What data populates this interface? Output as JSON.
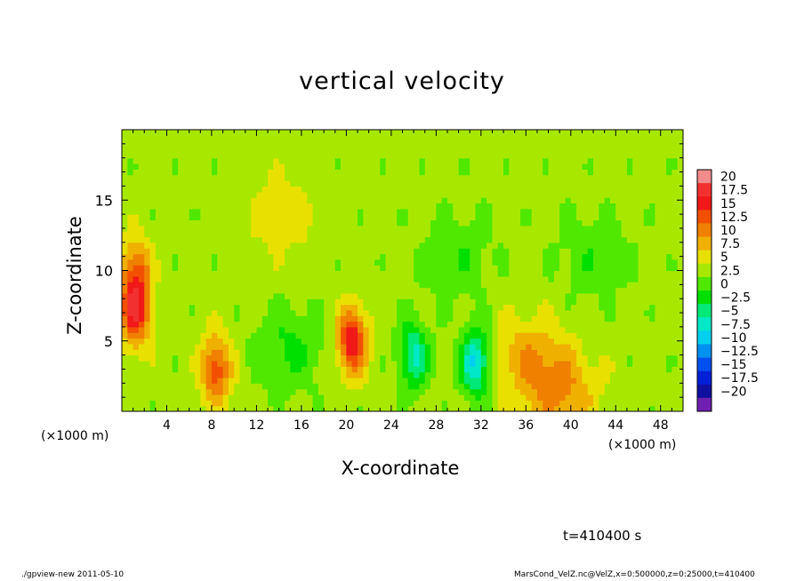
{
  "title": "vertical velocity",
  "footer": {
    "left": "./gpview-new  2011-05-10",
    "right": "MarsCond_VelZ.nc@VelZ,x=0:500000,z=0:25000,t=410400"
  },
  "time_label": "t=410400 s",
  "chart_data": {
    "type": "heatmap",
    "title": "vertical velocity",
    "xlabel": "X-coordinate",
    "ylabel": "Z-coordinate",
    "x_unit": "(×1000 m)",
    "xlim": [
      0,
      50
    ],
    "ylim": [
      0,
      20
    ],
    "x_ticks": [
      4,
      8,
      12,
      16,
      20,
      24,
      28,
      32,
      36,
      40,
      44,
      48
    ],
    "y_ticks": [
      5,
      10,
      15
    ],
    "colorbar": {
      "levels": [
        "20",
        "17.5",
        "15",
        "12.5",
        "10",
        "7.5",
        "5",
        "2.5",
        "0",
        "−2.5",
        "−5",
        "−7.5",
        "−10",
        "−12.5",
        "−15",
        "−17.5",
        "−20"
      ],
      "colors": [
        "#f28c8c",
        "#f23030",
        "#f01818",
        "#f25000",
        "#f08000",
        "#f0b000",
        "#e8e000",
        "#a8e800",
        "#50e800",
        "#00e000",
        "#00e878",
        "#00e8c8",
        "#00d0f0",
        "#0090f0",
        "#0050f0",
        "#0020d8",
        "#1010a0",
        "#7020b0"
      ]
    },
    "background_value": 1,
    "features": [
      {
        "x": 1.2,
        "z": 7.0,
        "peak": 13
      },
      {
        "x": 1.2,
        "z": 10.0,
        "peak": 9
      },
      {
        "x": 8.4,
        "z": 3.0,
        "peak": 11
      },
      {
        "x": 20.5,
        "z": 5.0,
        "peak": 14
      },
      {
        "x": 14.5,
        "z": 14.0,
        "peak": 3
      },
      {
        "x": 15.0,
        "z": 4.5,
        "peak": -4
      },
      {
        "x": 26.0,
        "z": 4.0,
        "peak": -9
      },
      {
        "x": 31.5,
        "z": 3.5,
        "peak": -12
      },
      {
        "x": 36.0,
        "z": 4.0,
        "peak": 5
      },
      {
        "x": 39.0,
        "z": 1.5,
        "peak": 7
      },
      {
        "x": 42.0,
        "z": 11.0,
        "peak": -3
      },
      {
        "x": 30.0,
        "z": 11.0,
        "peak": -3
      }
    ]
  }
}
